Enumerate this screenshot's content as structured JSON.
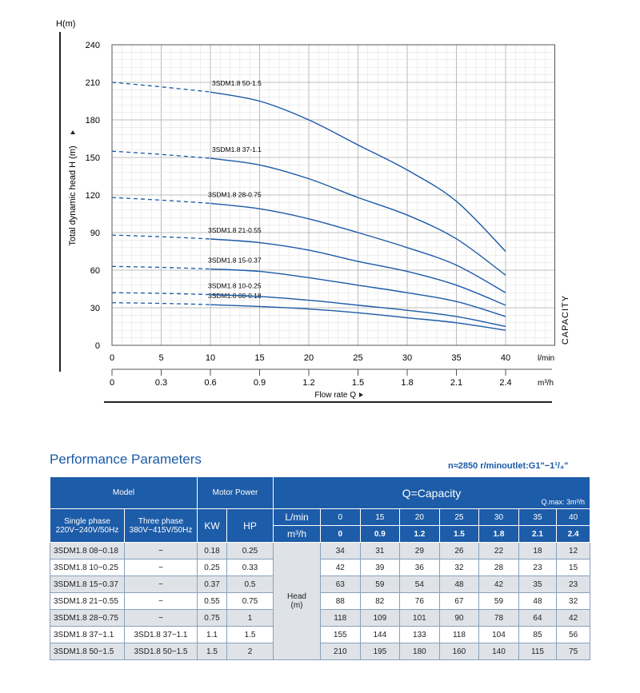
{
  "chart_data": {
    "type": "line",
    "ylabel": "Total dynamic head H (m)",
    "yunit": "H(m)",
    "xlabel": "Flow rate Q",
    "x_units": [
      "l/min",
      "m³/h"
    ],
    "x_ticks_lmin": [
      0,
      5,
      10,
      15,
      20,
      25,
      30,
      35,
      40
    ],
    "x_ticks_m3h": [
      "0",
      "0.3",
      "0.6",
      "0.9",
      "1.2",
      "1.5",
      "1.8",
      "2.1",
      "2.4"
    ],
    "y_ticks": [
      0,
      30,
      60,
      90,
      120,
      150,
      180,
      210,
      240
    ],
    "xlim": [
      0,
      45
    ],
    "ylim": [
      0,
      240
    ],
    "grid": true,
    "side_label": "CAPACITY",
    "line_color": "#1a5aa8",
    "x": [
      0,
      15,
      20,
      25,
      30,
      35,
      40
    ],
    "series": [
      {
        "name": "3SDM1.8 08-0.18",
        "values": [
          34,
          31,
          29,
          26,
          22,
          18,
          12
        ]
      },
      {
        "name": "3SDM1.8 10-0.25",
        "values": [
          42,
          39,
          36,
          32,
          28,
          23,
          15
        ]
      },
      {
        "name": "3SDM1.8 15-0.37",
        "values": [
          63,
          59,
          54,
          48,
          42,
          35,
          23
        ]
      },
      {
        "name": "3SDM1.8 21-0.55",
        "values": [
          88,
          82,
          76,
          67,
          59,
          48,
          32
        ]
      },
      {
        "name": "3SDM1.8 28-0.75",
        "values": [
          118,
          109,
          101,
          90,
          78,
          64,
          42
        ]
      },
      {
        "name": "3SDM1.8 37-1.1",
        "values": [
          155,
          144,
          133,
          118,
          104,
          85,
          56
        ]
      },
      {
        "name": "3SDM1.8 50-1.5",
        "values": [
          210,
          195,
          180,
          160,
          140,
          115,
          75
        ]
      }
    ]
  },
  "table": {
    "title": "Performance Parameters",
    "spec": "n≈2850 r/minoutlet:G1\"−1¹/₄\"",
    "model": "Model",
    "motor_power": "Motor Power",
    "capacity": "Q=Capacity",
    "qmax": "Q.max: 3m³/h",
    "single": "Single phase",
    "single_v": "220V−240V/50Hz",
    "three": "Three  phase",
    "three_v": "380V−415V/50Hz",
    "kw": "KW",
    "hp": "HP",
    "lmin": "L/min",
    "m3h": "m³/h",
    "lmin_vals": [
      "0",
      "15",
      "20",
      "25",
      "30",
      "35",
      "40"
    ],
    "m3h_vals": [
      "0",
      "0.9",
      "1.2",
      "1.5",
      "1.8",
      "2.1",
      "2.4"
    ],
    "head": "Head",
    "head_unit": "(m)",
    "rows": [
      {
        "single": "3SDM1.8 08−0.18",
        "three": "−",
        "kw": "0.18",
        "hp": "0.25",
        "h": [
          "34",
          "31",
          "29",
          "26",
          "22",
          "18",
          "12"
        ]
      },
      {
        "single": "3SDM1.8 10−0.25",
        "three": "−",
        "kw": "0.25",
        "hp": "0.33",
        "h": [
          "42",
          "39",
          "36",
          "32",
          "28",
          "23",
          "15"
        ]
      },
      {
        "single": "3SDM1.8 15−0.37",
        "three": "−",
        "kw": "0.37",
        "hp": "0.5",
        "h": [
          "63",
          "59",
          "54",
          "48",
          "42",
          "35",
          "23"
        ]
      },
      {
        "single": "3SDM1.8  21−0.55",
        "three": "−",
        "kw": "0.55",
        "hp": "0.75",
        "h": [
          "88",
          "82",
          "76",
          "67",
          "59",
          "48",
          "32"
        ]
      },
      {
        "single": "3SDM1.8  28−0.75",
        "three": "−",
        "kw": "0.75",
        "hp": "1",
        "h": [
          "118",
          "109",
          "101",
          "90",
          "78",
          "64",
          "42"
        ]
      },
      {
        "single": "3SDM1.8  37−1.1",
        "three": "3SD1.8  37−1.1",
        "kw": "1.1",
        "hp": "1.5",
        "h": [
          "155",
          "144",
          "133",
          "118",
          "104",
          "85",
          "56"
        ]
      },
      {
        "single": "3SDM1.8  50−1.5",
        "three": "3SD1.8  50−1.5",
        "kw": "1.5",
        "hp": "2",
        "h": [
          "210",
          "195",
          "180",
          "160",
          "140",
          "115",
          "75"
        ]
      }
    ]
  }
}
